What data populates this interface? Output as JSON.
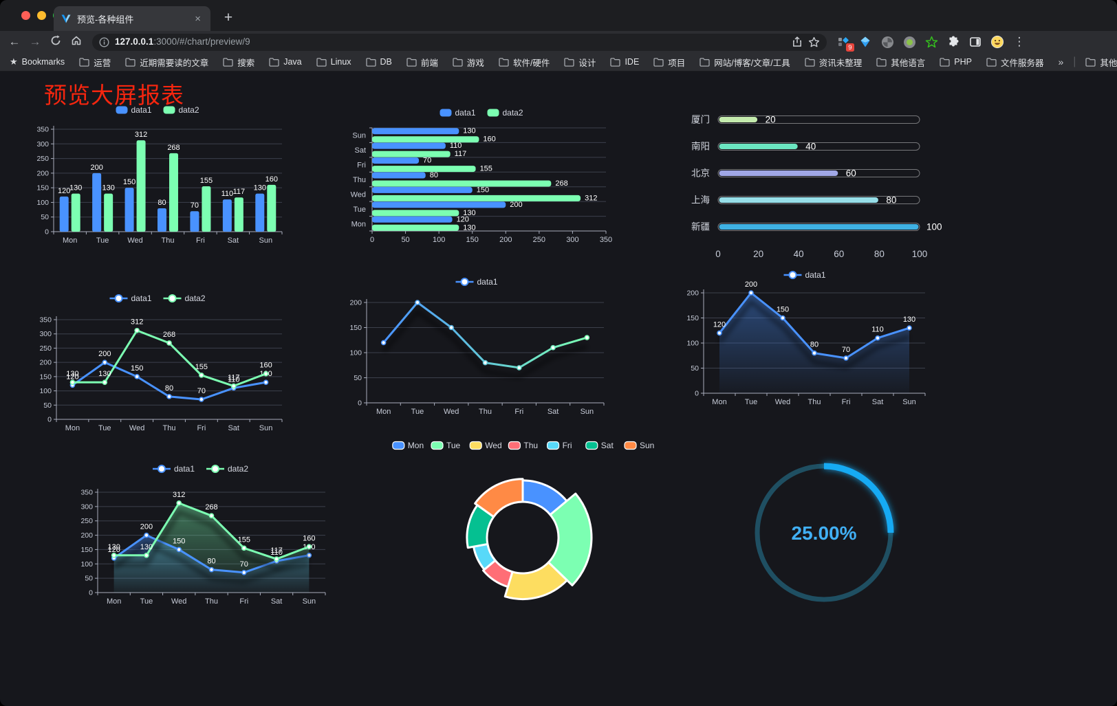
{
  "browser": {
    "tab_title": "预览-各种组件",
    "close_glyph": "×",
    "new_tab_glyph": "+",
    "url_host": "127.0.0.1",
    "url_rest": ":3000/#/chart/preview/9",
    "back_glyph": "←",
    "forward_glyph": "→",
    "bookmarks_label": "Bookmarks",
    "bookmark_folders": [
      "运营",
      "近期需要读的文章",
      "搜索",
      "Java",
      "Linux",
      "DB",
      "前端",
      "游戏",
      "软件/硬件",
      "设计",
      "IDE",
      "项目",
      "网站/博客/文章/工具",
      "资讯未整理",
      "其他语言",
      "PHP",
      "文件服务器"
    ],
    "overflow_glyph": "»",
    "other_bookmarks": "其他书签",
    "extension_badge": "9",
    "menu_glyph": "⋮"
  },
  "page": {
    "title": "预览大屏报表",
    "title_color": "#f6260f",
    "background": "#16171c"
  },
  "chart_data": [
    {
      "id": "bar",
      "type": "bar",
      "categories": [
        "Mon",
        "Tue",
        "Wed",
        "Thu",
        "Fri",
        "Sat",
        "Sun"
      ],
      "series": [
        {
          "name": "data1",
          "color": "#4992ff",
          "values": [
            120,
            200,
            150,
            80,
            70,
            110,
            130
          ]
        },
        {
          "name": "data2",
          "color": "#7cffb2",
          "values": [
            130,
            130,
            312,
            268,
            155,
            117,
            160
          ]
        }
      ],
      "ylim": [
        0,
        350
      ],
      "yticks": [
        0,
        50,
        100,
        150,
        200,
        250,
        300,
        350
      ],
      "legend": "rect",
      "labels": true
    },
    {
      "id": "hbar",
      "type": "bar-horizontal",
      "categories": [
        "Mon",
        "Tue",
        "Wed",
        "Thu",
        "Fri",
        "Sat",
        "Sun"
      ],
      "series": [
        {
          "name": "data1",
          "color": "#4992ff",
          "values": [
            120,
            200,
            150,
            80,
            70,
            110,
            130
          ]
        },
        {
          "name": "data2",
          "color": "#7cffb2",
          "values": [
            130,
            130,
            312,
            268,
            155,
            117,
            160
          ]
        }
      ],
      "xlim": [
        0,
        350
      ],
      "xticks": [
        0,
        50,
        100,
        150,
        200,
        250,
        300,
        350
      ],
      "legend": "rect",
      "labels": true
    },
    {
      "id": "progress",
      "type": "progress-bars",
      "categories": [
        "厦门",
        "南阳",
        "北京",
        "上海",
        "新疆"
      ],
      "values": [
        20,
        40,
        60,
        80,
        100
      ],
      "colors": [
        "#c4ebad",
        "#6be6c1",
        "#a0a7e6",
        "#96dee8",
        "#3fb1e3"
      ],
      "xlim": [
        0,
        100
      ],
      "xticks": [
        0,
        20,
        40,
        60,
        80,
        100
      ]
    },
    {
      "id": "line",
      "type": "line",
      "categories": [
        "Mon",
        "Tue",
        "Wed",
        "Thu",
        "Fri",
        "Sat",
        "Sun"
      ],
      "series": [
        {
          "name": "data1",
          "color": "#4992ff",
          "values": [
            120,
            200,
            150,
            80,
            70,
            110,
            130
          ]
        },
        {
          "name": "data2",
          "color": "#7cffb2",
          "values": [
            130,
            130,
            312,
            268,
            155,
            117,
            160
          ]
        }
      ],
      "ylim": [
        0,
        350
      ],
      "yticks": [
        0,
        50,
        100,
        150,
        200,
        250,
        300,
        350
      ],
      "labels": true,
      "legend": "line"
    },
    {
      "id": "gradient-line",
      "type": "line",
      "categories": [
        "Mon",
        "Tue",
        "Wed",
        "Thu",
        "Fri",
        "Sat",
        "Sun"
      ],
      "series": [
        {
          "name": "data1",
          "colors": [
            "#4992ff",
            "#7cffb2"
          ],
          "values": [
            120,
            200,
            150,
            80,
            70,
            110,
            130
          ]
        }
      ],
      "ylim": [
        0,
        200
      ],
      "yticks": [
        0,
        50,
        100,
        150,
        200
      ],
      "labels": false,
      "shadow": true,
      "legend": "line"
    },
    {
      "id": "area",
      "type": "line",
      "area": true,
      "categories": [
        "Mon",
        "Tue",
        "Wed",
        "Thu",
        "Fri",
        "Sat",
        "Sun"
      ],
      "series": [
        {
          "name": "data1",
          "color": "#4992ff",
          "values": [
            120,
            200,
            150,
            80,
            70,
            110,
            130
          ]
        }
      ],
      "ylim": [
        0,
        200
      ],
      "yticks": [
        0,
        50,
        100,
        150,
        200
      ],
      "labels": true,
      "shadow": true,
      "legend": "line"
    },
    {
      "id": "area2",
      "type": "line",
      "area": true,
      "categories": [
        "Mon",
        "Tue",
        "Wed",
        "Thu",
        "Fri",
        "Sat",
        "Sun"
      ],
      "series": [
        {
          "name": "data1",
          "color": "#4992ff",
          "values": [
            120,
            200,
            150,
            80,
            70,
            110,
            130
          ]
        },
        {
          "name": "data2",
          "color": "#7cffb2",
          "values": [
            130,
            130,
            312,
            268,
            155,
            117,
            160
          ]
        }
      ],
      "ylim": [
        0,
        350
      ],
      "yticks": [
        0,
        50,
        100,
        150,
        200,
        250,
        300,
        350
      ],
      "labels": true,
      "shadow": true,
      "legend": "line"
    },
    {
      "id": "pie",
      "type": "pie-rose",
      "categories": [
        "Mon",
        "Tue",
        "Wed",
        "Thu",
        "Fri",
        "Sat",
        "Sun"
      ],
      "values": [
        120,
        200,
        150,
        80,
        70,
        110,
        130
      ],
      "colors": [
        "#4992ff",
        "#7cffb2",
        "#fddd60",
        "#ff6e76",
        "#58d9f9",
        "#05c091",
        "#ff8a45"
      ],
      "border_color": "#ffffff"
    },
    {
      "id": "gauge",
      "type": "gauge",
      "value": 25,
      "label": "25.00%",
      "track_color": "#1f4f62",
      "progress_color": "#16aaf3",
      "text_color": "#41b0f5"
    }
  ]
}
